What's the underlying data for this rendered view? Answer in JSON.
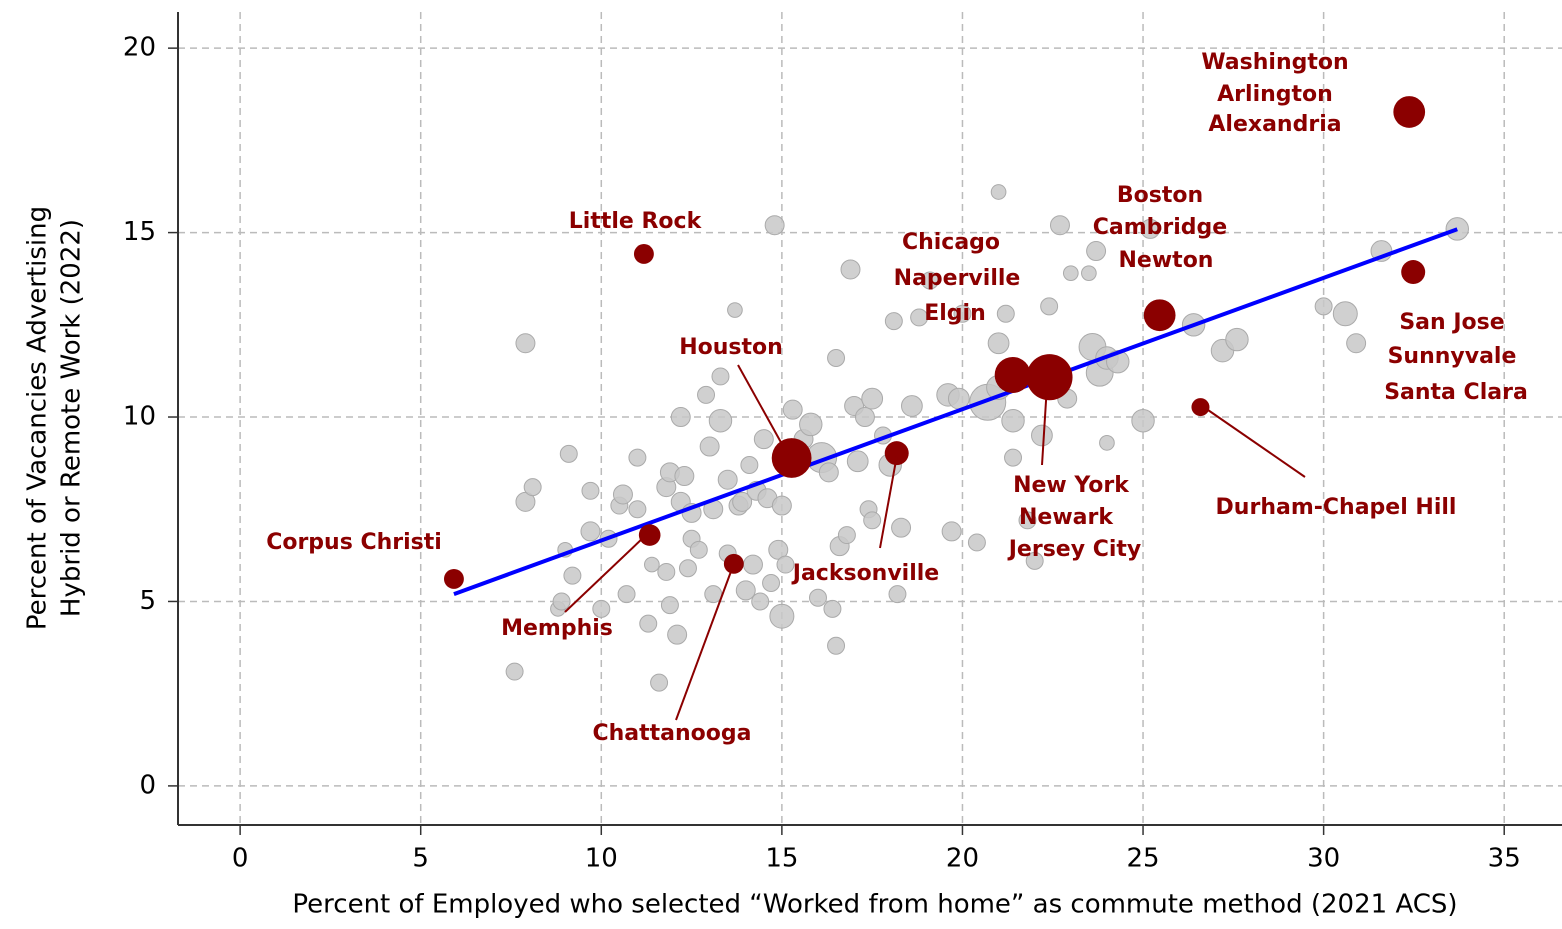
{
  "chart_data": {
    "type": "scatter",
    "x_label": "Percent of Employed who selected “Worked from home” as commute method (2021 ACS)",
    "y_label": [
      "Percent of Vacancies Advertising",
      "Hybrid or Remote Work (2022)"
    ],
    "xlim": [
      -1.72,
      36.6
    ],
    "ylim": [
      -1.06,
      20.98
    ],
    "xticks": [
      0,
      5,
      10,
      15,
      20,
      25,
      30,
      35
    ],
    "yticks": [
      0,
      5,
      10,
      15,
      20
    ],
    "grid": true,
    "fit_line": {
      "color": "#0000ff",
      "x": [
        5.92,
        33.7
      ],
      "y": [
        5.2,
        15.09
      ]
    },
    "series": [
      {
        "color": "#c8c8c8",
        "x": [
          7.6,
          7.9,
          8.1,
          7.9,
          8.8,
          8.9,
          9.0,
          9.1,
          9.2,
          9.7,
          9.7,
          10.0,
          10.2,
          10.5,
          10.6,
          10.7,
          11.0,
          11.0,
          11.4,
          11.3,
          11.6,
          11.8,
          11.9,
          11.8,
          11.9,
          12.1,
          12.2,
          12.2,
          12.3,
          12.4,
          12.5,
          12.5,
          12.7,
          12.9,
          13.0,
          13.1,
          13.1,
          13.3,
          13.3,
          13.5,
          13.5,
          13.7,
          13.8,
          13.9,
          14.0,
          14.1,
          14.2,
          14.3,
          14.4,
          14.5,
          14.6,
          14.7,
          14.8,
          14.9,
          15.0,
          15.0,
          15.1,
          15.3,
          15.6,
          15.8,
          16.0,
          16.1,
          16.3,
          16.4,
          16.5,
          16.5,
          16.6,
          16.8,
          16.9,
          17.0,
          17.1,
          17.3,
          17.4,
          17.5,
          17.5,
          17.8,
          18.0,
          18.1,
          18.2,
          18.3,
          18.6,
          18.8,
          19.1,
          19.6,
          19.7,
          19.9,
          20.0,
          20.4,
          20.7,
          21.0,
          21.0,
          21.0,
          21.2,
          21.4,
          21.4,
          21.8,
          22.0,
          22.2,
          22.4,
          22.7,
          22.9,
          23.0,
          23.5,
          23.6,
          23.7,
          23.8,
          24.0,
          24.0,
          24.3,
          25.0,
          25.2,
          26.4,
          27.2,
          27.6,
          30.0,
          30.6,
          30.9,
          31.6,
          33.7
        ],
        "y": [
          3.1,
          7.7,
          8.1,
          12.0,
          4.8,
          5.0,
          6.4,
          9.0,
          5.7,
          8.0,
          6.9,
          4.8,
          6.7,
          7.6,
          7.9,
          5.2,
          7.5,
          8.9,
          6.0,
          4.4,
          2.8,
          8.1,
          8.5,
          5.8,
          4.9,
          4.1,
          10.0,
          7.7,
          8.4,
          5.9,
          6.7,
          7.4,
          6.4,
          10.6,
          9.2,
          7.5,
          5.2,
          9.9,
          11.1,
          6.3,
          8.3,
          12.9,
          7.6,
          7.7,
          5.3,
          8.7,
          6.0,
          8.0,
          5.0,
          9.4,
          7.8,
          5.5,
          15.2,
          6.4,
          7.6,
          4.6,
          6.0,
          10.2,
          9.4,
          9.8,
          5.1,
          8.9,
          8.5,
          4.8,
          11.6,
          3.8,
          6.5,
          6.8,
          14.0,
          10.3,
          8.8,
          10.0,
          7.5,
          10.5,
          7.2,
          9.5,
          8.7,
          12.6,
          5.2,
          7.0,
          10.3,
          12.7,
          13.7,
          10.6,
          6.9,
          10.5,
          12.8,
          6.6,
          10.4,
          16.1,
          12.0,
          10.8,
          12.8,
          9.9,
          8.9,
          7.2,
          6.1,
          9.5,
          13.0,
          15.2,
          10.5,
          13.9,
          13.9,
          11.9,
          14.5,
          11.2,
          11.6,
          9.3,
          11.5,
          9.9,
          15.1,
          12.5,
          11.8,
          12.1,
          13.0,
          12.8,
          12.0,
          14.5,
          15.1
        ],
        "sizes": [
          8,
          10,
          8,
          10,
          6,
          8,
          6,
          8,
          8,
          8,
          10,
          8,
          8,
          8,
          10,
          8,
          8,
          8,
          6,
          8,
          8,
          10,
          10,
          8,
          8,
          10,
          10,
          10,
          10,
          8,
          8,
          10,
          8,
          8,
          10,
          10,
          8,
          14,
          8,
          8,
          10,
          6,
          10,
          10,
          10,
          8,
          10,
          10,
          8,
          10,
          10,
          8,
          10,
          10,
          10,
          16,
          8,
          10,
          10,
          14,
          8,
          25,
          10,
          8,
          8,
          8,
          10,
          8,
          10,
          10,
          12,
          10,
          8,
          12,
          8,
          8,
          14,
          8,
          8,
          10,
          12,
          8,
          8,
          14,
          10,
          12,
          8,
          8,
          36,
          6,
          12,
          16,
          8,
          14,
          8,
          8,
          8,
          12,
          8,
          10,
          10,
          6,
          6,
          20,
          10,
          20,
          14,
          6,
          14,
          14,
          10,
          14,
          14,
          14,
          8,
          16,
          10,
          12,
          14
        ]
      },
      {
        "color": "#8b0000",
        "labels": [
          [
            "Washington",
            "Arlington",
            "Alexandria"
          ],
          [
            "San Jose",
            "Sunnyvale",
            "Santa Clara"
          ],
          [
            "Boston",
            "Cambridge",
            "Newton"
          ],
          [
            "Durham-Chapel Hill"
          ],
          [
            "New York",
            "Newark",
            "Jersey City"
          ],
          [
            "Chicago",
            "Naperville",
            "Elgin"
          ],
          [
            "Houston"
          ],
          [
            "Jacksonville"
          ],
          [
            "Little Rock"
          ],
          [
            "Memphis"
          ],
          [
            "Chattanooga"
          ],
          [
            "Corpus Christi"
          ]
        ],
        "x": [
          32.37,
          32.48,
          25.46,
          26.59,
          22.41,
          21.39,
          15.27,
          18.18,
          11.18,
          11.34,
          13.67,
          5.92
        ],
        "y": [
          18.27,
          13.93,
          12.76,
          10.27,
          11.08,
          11.14,
          8.89,
          9.02,
          14.42,
          6.8,
          6.02,
          5.61
        ],
        "sizes": [
          28,
          16,
          28,
          9,
          59,
          36,
          44,
          16,
          11,
          13,
          11,
          11
        ]
      }
    ]
  }
}
